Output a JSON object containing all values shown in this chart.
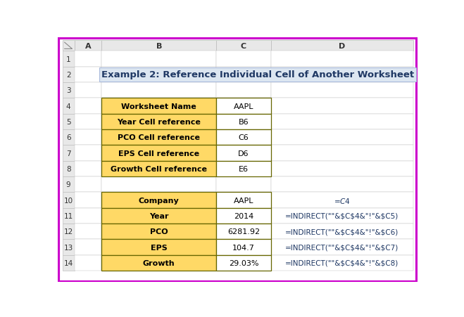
{
  "title": "Example 2: Reference Individual Cell of Another Worksheet",
  "title_bg": "#dce6f1",
  "title_color": "#1f3864",
  "outer_border": "#cc00cc",
  "header_bg": "#e8e8e8",
  "row_numbers": [
    "1",
    "2",
    "3",
    "4",
    "5",
    "6",
    "7",
    "8",
    "9",
    "10",
    "11",
    "12",
    "13",
    "14"
  ],
  "col_names": [
    "A",
    "B",
    "C",
    "D"
  ],
  "table1_labels": [
    "Worksheet Name",
    "Year Cell reference",
    "PCO Cell reference",
    "EPS Cell reference",
    "Growth Cell reference"
  ],
  "table1_values": [
    "AAPL",
    "B6",
    "C6",
    "D6",
    "E6"
  ],
  "table2_labels": [
    "Company",
    "Year",
    "PCO",
    "EPS",
    "Growth"
  ],
  "table2_values": [
    "AAPL",
    "2014",
    "6281.92",
    "104.7",
    "29.03%"
  ],
  "formula_d_col": [
    "=$C$4",
    "=INDIRECT(\"\"\"\"&$C$4&\"\"!\"\"&$C5)",
    "=INDIRECT(\"\"\"\"&$C$4&\"\"!\"\"&$C6)",
    "=INDIRECT(\"\"\"\"&$C$4&\"\"!\"\"&$C7)",
    "=INDIRECT(\"\"\"\"&$C$4&\"\"!\"\"&$C8)"
  ],
  "yellow_bg": "#ffd966",
  "white_bg": "#ffffff",
  "table_border": "#666600",
  "grid_line": "#c0c0c0",
  "font_color_formula": "#1f3864"
}
